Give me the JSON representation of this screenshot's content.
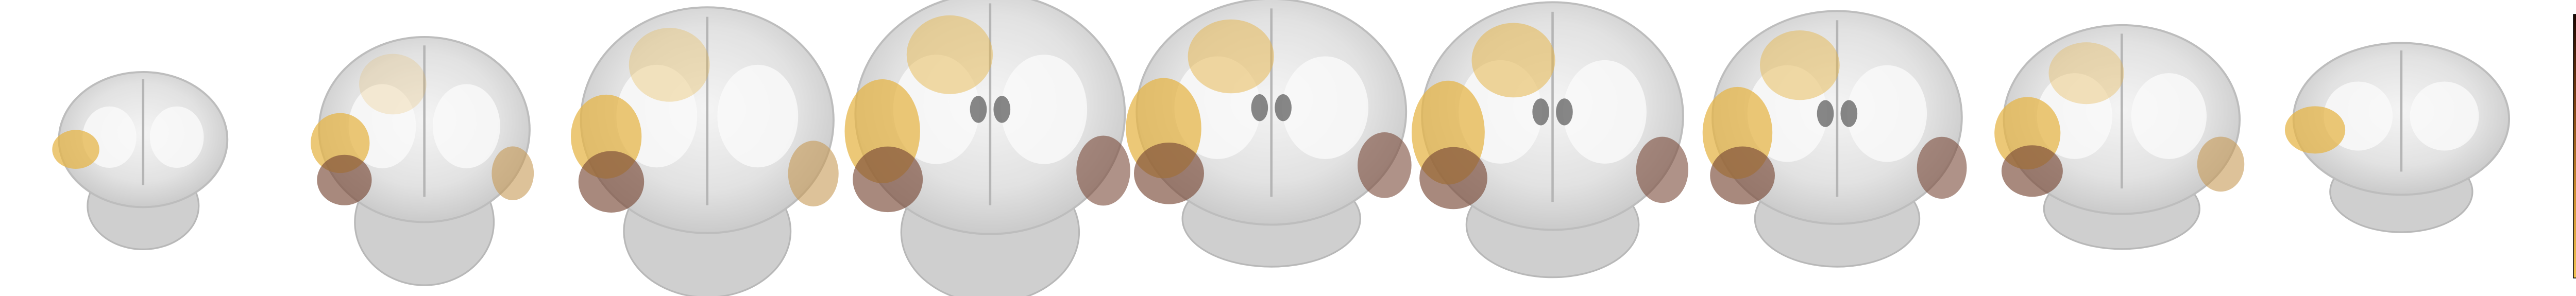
{
  "chart_data": {
    "type": "colorbar",
    "ylim": [
      0,
      0.32
    ],
    "yticks": [
      0,
      0.08,
      0.16,
      0.24,
      0.32
    ],
    "colormap": [
      "#f2c451",
      "#c98a2c",
      "#7a3f12",
      "#1c0600"
    ]
  }
}
